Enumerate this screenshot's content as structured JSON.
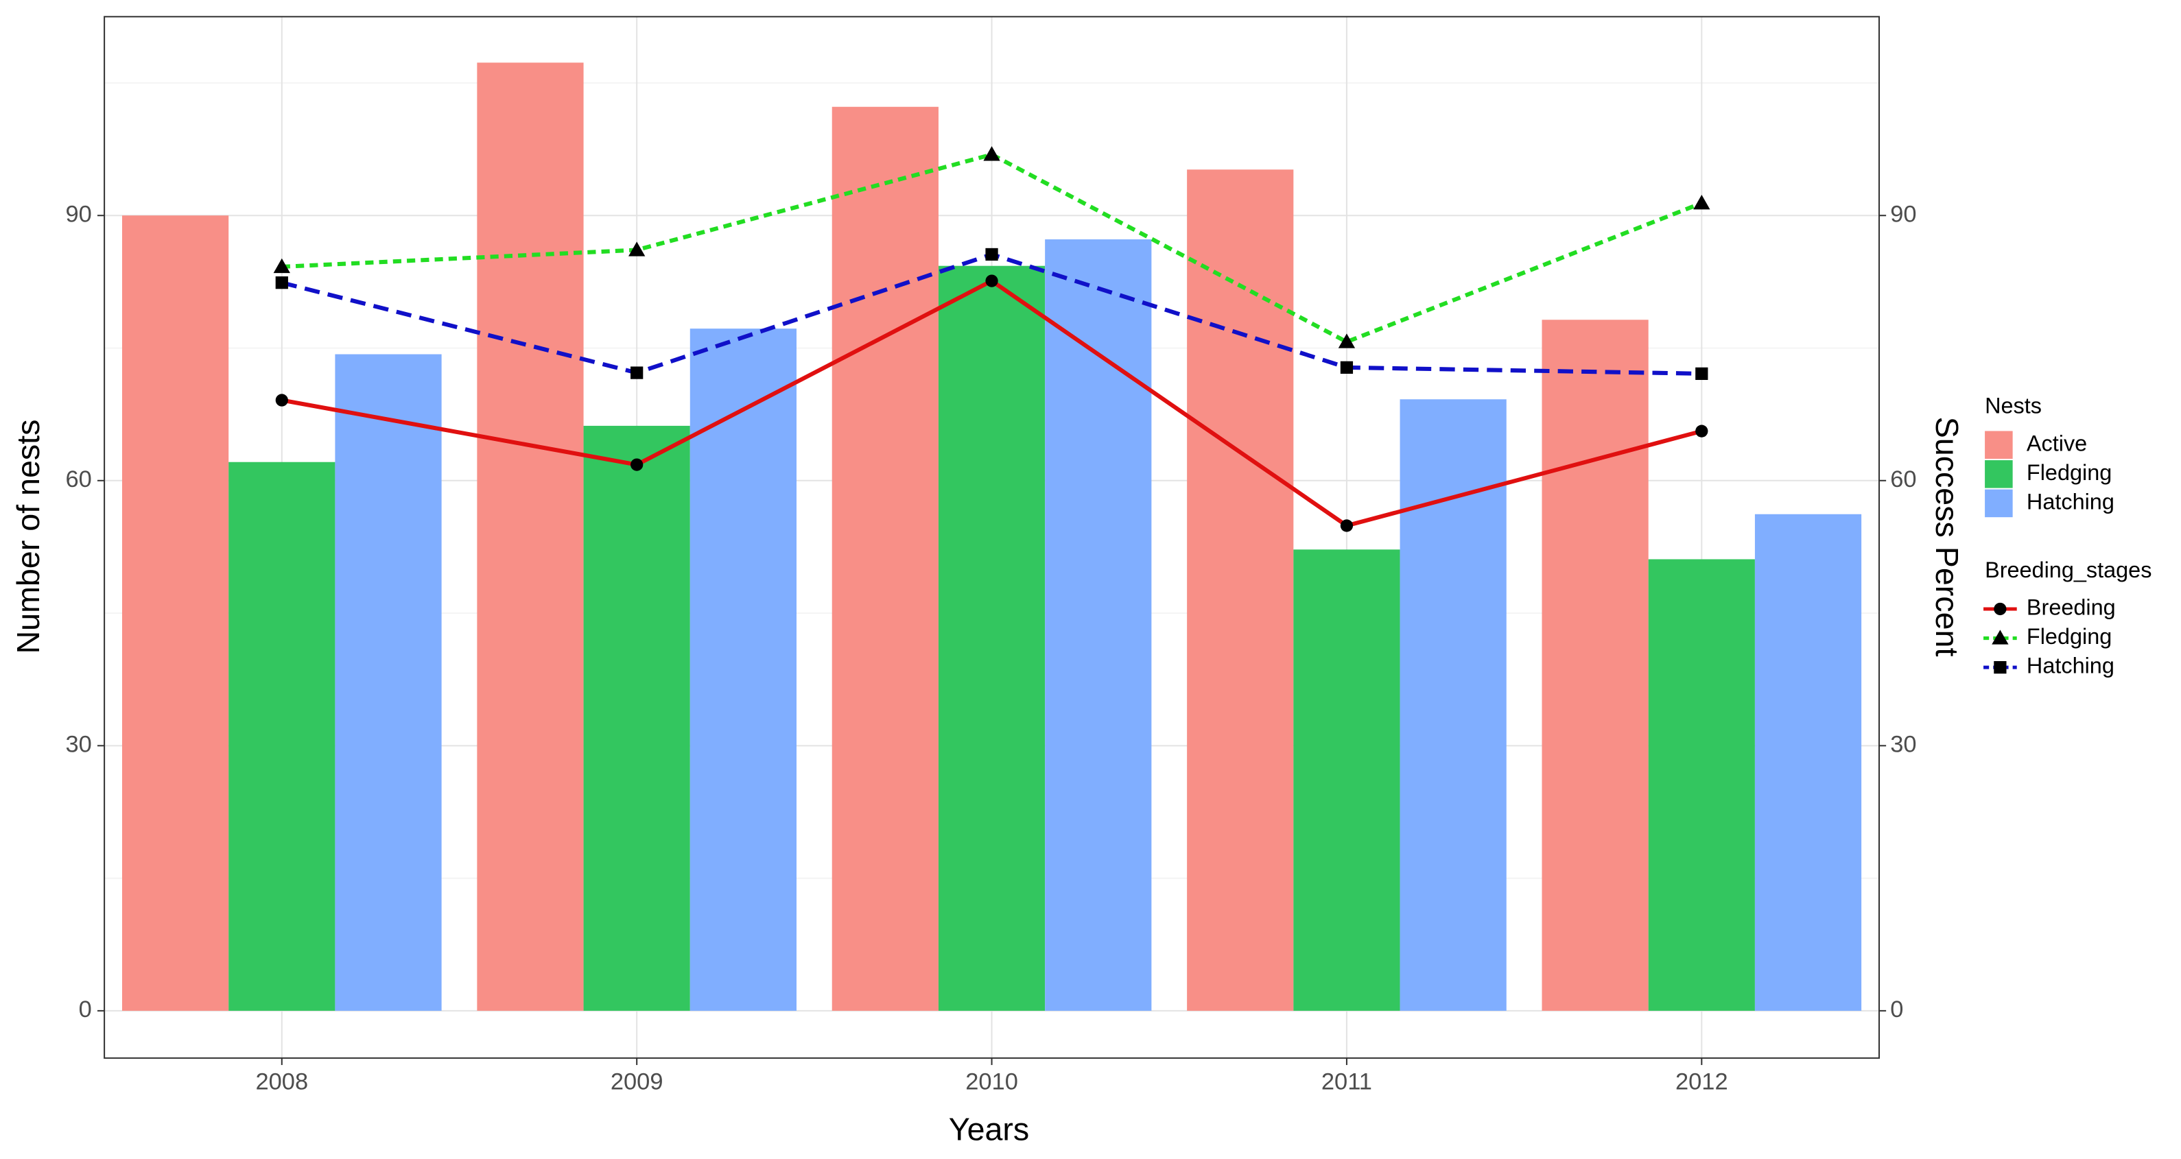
{
  "chart_data": {
    "type": "bar",
    "x_label": "Years",
    "y_label": "Number of nests",
    "y2_label": "Success Percent",
    "bar_legend_title": "Nests",
    "line_legend_title": "Breeding_stages",
    "categories": [
      "2008",
      "2009",
      "2010",
      "2011",
      "2012"
    ],
    "series": [
      {
        "name": "Active",
        "type": "bar",
        "color": "#f88f87",
        "values": [
          90,
          107.3,
          102.3,
          95.2,
          78.2
        ]
      },
      {
        "name": "Fledging",
        "type": "bar",
        "color": "#33c65f",
        "values": [
          62.1,
          66.2,
          84.3,
          52.2,
          51.1
        ]
      },
      {
        "name": "Hatching",
        "type": "bar",
        "color": "#80aeff",
        "values": [
          74.3,
          77.2,
          87.3,
          69.2,
          56.2
        ]
      },
      {
        "name": "Breeding",
        "type": "line",
        "axis": "y2",
        "color": "#e01010",
        "marker": "circle",
        "dash": "solid",
        "values": [
          69.1,
          61.8,
          82.6,
          54.9,
          65.6
        ]
      },
      {
        "name": "Fledging",
        "type": "line",
        "axis": "y2",
        "color": "#22dd22",
        "marker": "triangle",
        "dash": "dotted",
        "values": [
          84.2,
          86.1,
          96.9,
          75.7,
          91.4
        ]
      },
      {
        "name": "Hatching",
        "type": "line",
        "axis": "y2",
        "color": "#1010c8",
        "marker": "square",
        "dash": "dashed",
        "values": [
          82.4,
          72.2,
          85.6,
          72.8,
          72.1
        ]
      }
    ],
    "ylim": [
      -5.35,
      112.5
    ],
    "yticks": [
      0,
      30,
      60,
      90
    ],
    "y2lim": [
      -5.35,
      112.5
    ],
    "y2ticks": [
      0,
      30,
      60,
      90
    ],
    "grid": true
  }
}
